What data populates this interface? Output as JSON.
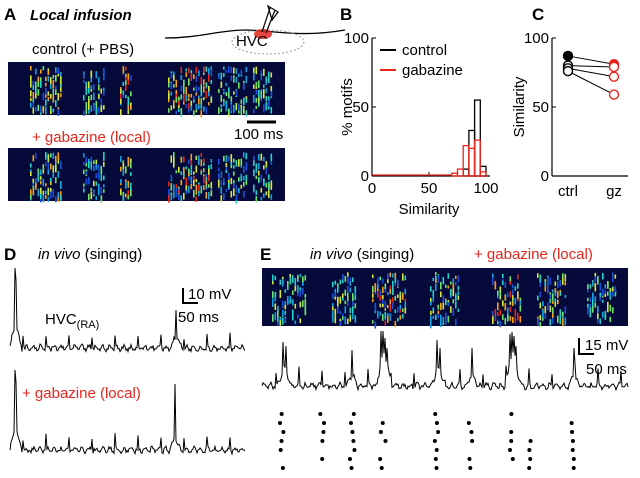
{
  "panels": {
    "A": {
      "letter": "A",
      "title": "Local infusion",
      "hvc_label": "HVC",
      "control_label": "control (+ PBS)",
      "scale_label": "100 ms",
      "gabazine_label": "+ gabazine (local)"
    },
    "D": {
      "letter": "D",
      "title_italic": "in vivo",
      "title_rest": "(singing)",
      "cell_label": "HVC",
      "cell_sub": "(RA)",
      "scale_y": "10 mV",
      "scale_x": "50 ms",
      "gabazine_label": "+ gabazine (local)"
    },
    "E": {
      "letter": "E",
      "title_italic": "in vivo",
      "title_rest": "(singing)",
      "gabazine_label": "+ gabazine (local)",
      "scale_y": "15 mV",
      "scale_x": "50 ms"
    }
  },
  "chart_data": [
    {
      "type": "histogram",
      "letter": "B",
      "x_label": "Similarity",
      "y_label": "% motifs",
      "bins": [
        70,
        75,
        80,
        85,
        90,
        95,
        100
      ],
      "series": [
        {
          "name": "control",
          "color": "#000000",
          "values": [
            0,
            0,
            5,
            33,
            55,
            7
          ]
        },
        {
          "name": "gabazine",
          "color": "#e8251d",
          "values": [
            2,
            5,
            22,
            20,
            26,
            3
          ]
        }
      ],
      "xlim": [
        0,
        100
      ],
      "xticks": [
        0,
        50,
        100
      ],
      "ylim": [
        0,
        100
      ],
      "yticks": [
        0,
        50,
        100
      ]
    },
    {
      "type": "paired",
      "letter": "C",
      "y_label": "Similarity",
      "categories": [
        "ctrl",
        "gz"
      ],
      "category_colors": [
        "#000000",
        "#e8251d"
      ],
      "series": [
        {
          "values": [
            87,
            81
          ],
          "filled": true
        },
        {
          "values": [
            80,
            79
          ],
          "filled": false
        },
        {
          "values": [
            78,
            72
          ],
          "filled": false
        },
        {
          "values": [
            76,
            59
          ],
          "filled": false
        }
      ],
      "ylim": [
        0,
        100
      ],
      "yticks": [
        0,
        50,
        100
      ]
    }
  ]
}
